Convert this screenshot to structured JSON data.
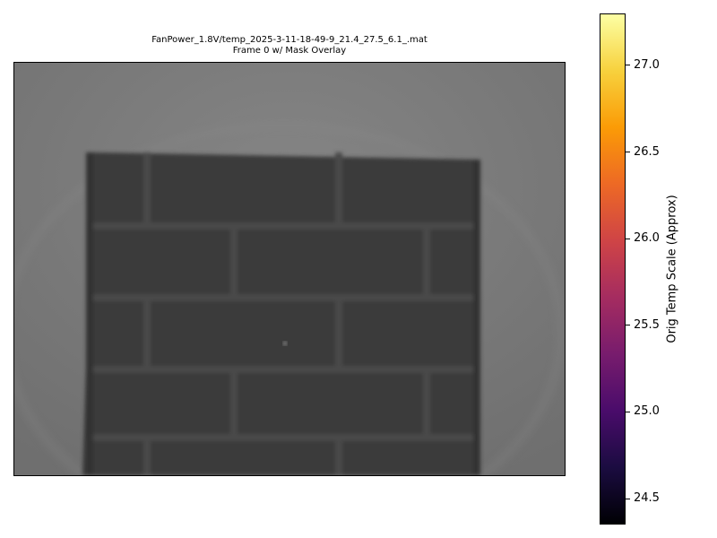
{
  "chart_data": {
    "type": "heatmap",
    "title_line1": "FanPower_1.8V/temp_2025-3-11-18-49-9_21.4_27.5_6.1_.mat",
    "title_line2": "Frame 0 w/ Mask Overlay",
    "colorbar": {
      "label": "Orig Temp Scale (Approx)",
      "colormap": "inferno",
      "range": [
        24.35,
        27.3
      ],
      "ticks": [
        24.5,
        25.0,
        25.5,
        26.0,
        26.5,
        27.0
      ],
      "tick_labels": [
        "24.5",
        "25.0",
        "25.5",
        "26.0",
        "26.5",
        "27.0"
      ],
      "stops": [
        "#000004",
        "#1b0c41",
        "#4a0c6b",
        "#781c6d",
        "#a52c60",
        "#cf4446",
        "#ed6925",
        "#fb9b06",
        "#f7d13d",
        "#fcffa4"
      ]
    },
    "image": {
      "axes_visible": false,
      "background_gray": "#7b7b7b",
      "panel_gray": "#3a3a3a",
      "grout_gray": "#4a4a4a"
    }
  }
}
